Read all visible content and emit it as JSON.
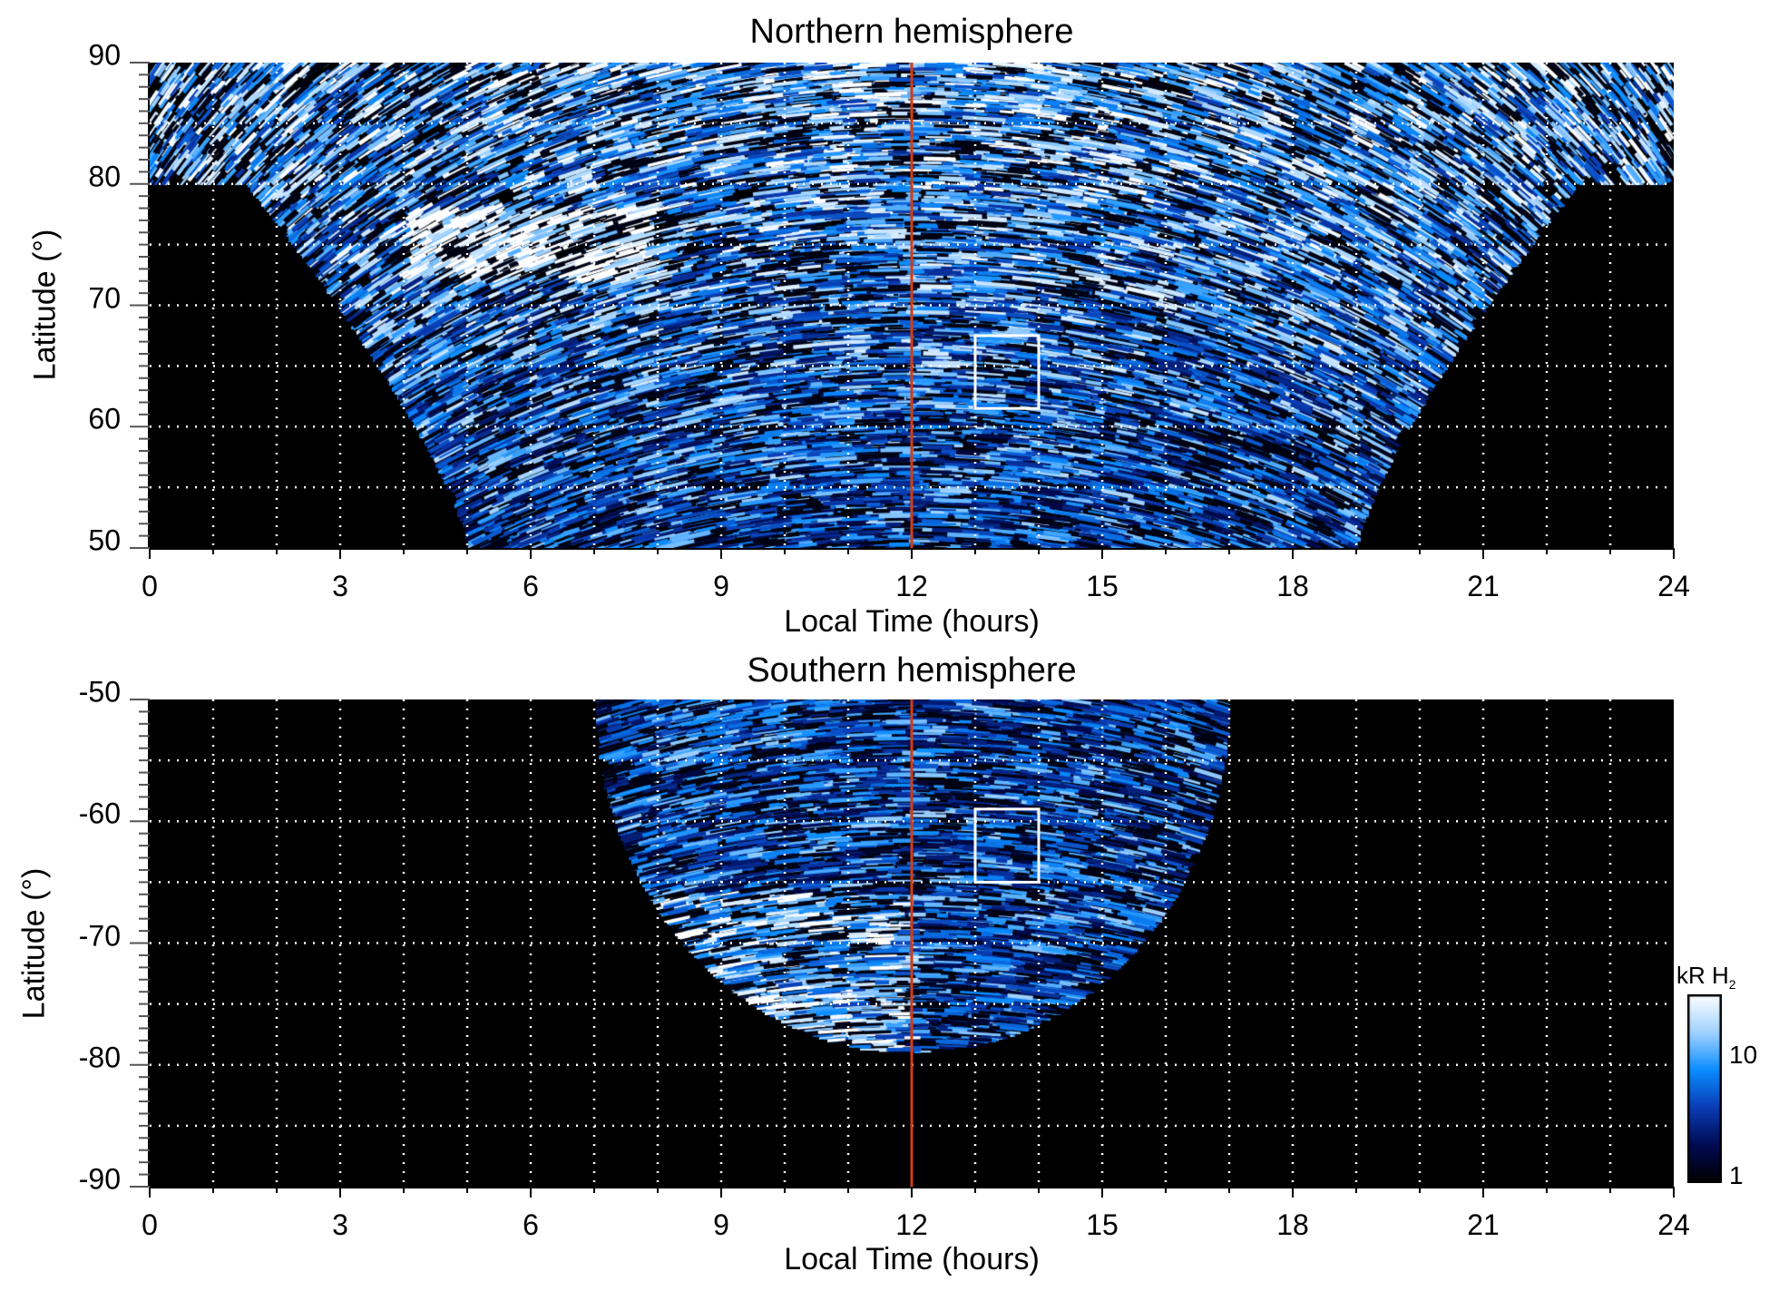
{
  "chart_data": [
    {
      "type": "heatmap",
      "title": "Northern hemisphere",
      "xlabel": "Local Time (hours)",
      "ylabel": "Latitude (°)",
      "xlim": [
        0,
        24
      ],
      "ylim": [
        50,
        90
      ],
      "xticks": [
        "0",
        "3",
        "6",
        "9",
        "12",
        "15",
        "18",
        "21",
        "24"
      ],
      "yticks": [
        "50",
        "60",
        "70",
        "80",
        "90"
      ],
      "grid": true,
      "grid_x_step": 1,
      "grid_y_step": 5,
      "noon_line_lt": 12,
      "highlight_box": {
        "lt": [
          13,
          14
        ],
        "lat": [
          61.5,
          67.5
        ]
      },
      "coverage": "lat>80 all LT; equatorward from LT 5-19 at 50°"
    },
    {
      "type": "heatmap",
      "title": "Southern hemisphere",
      "xlabel": "Local Time (hours)",
      "ylabel": "Latitude (°)",
      "xlim": [
        0,
        24
      ],
      "ylim": [
        -90,
        -50
      ],
      "xticks": [
        "0",
        "3",
        "6",
        "9",
        "12",
        "15",
        "18",
        "21",
        "24"
      ],
      "yticks": [
        "-90",
        "-80",
        "-70",
        "-60",
        "-50"
      ],
      "grid": true,
      "grid_x_step": 1,
      "grid_y_step": 5,
      "noon_line_lt": 12,
      "highlight_box": {
        "lt": [
          13,
          14
        ],
        "lat": [
          -65,
          -59
        ]
      },
      "coverage": "LT 7-17 at -50°, down to about -79° near noon"
    }
  ],
  "colorbar": {
    "unit": "kR H",
    "unit_sub": "2",
    "scale": "log",
    "range": [
      1,
      30
    ],
    "ticks": [
      "1",
      "10"
    ],
    "colors": [
      "#000000",
      "#000a50",
      "#0a3cb4",
      "#0a8cff",
      "#a0d2ff",
      "#ffffff"
    ]
  },
  "colors": {
    "noon_line": "#d23c14",
    "box": "#ffffff",
    "grid": "#ffffff"
  }
}
